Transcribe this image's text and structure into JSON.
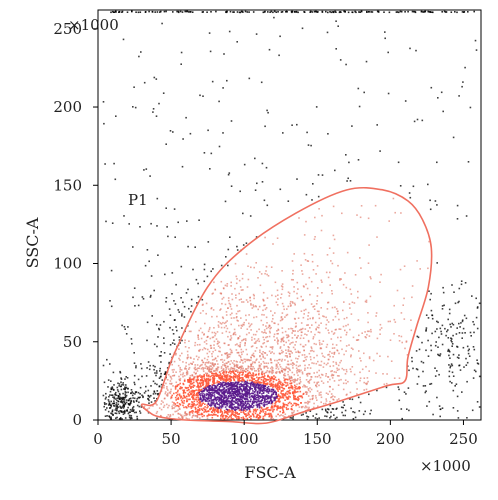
{
  "chart_data": {
    "type": "scatter",
    "title": "",
    "xlabel": "FSC-A",
    "ylabel": "SSC-A",
    "x_multiplier_label": "×1000",
    "y_multiplier_label": "×1000",
    "xlim": [
      0,
      262
    ],
    "ylim": [
      0,
      262
    ],
    "x_ticks": [
      0,
      50,
      100,
      150,
      200,
      250
    ],
    "y_ticks": [
      0,
      50,
      100,
      150,
      200,
      250
    ],
    "grid": false,
    "colors": {
      "background_points": "#000000",
      "gate_points_low": "#e07b6b",
      "gate_points_mid": "#ff5a3c",
      "gate_points_high": "#5a1a8c",
      "gate_outline": "#f07060"
    },
    "gate": {
      "name": "P1",
      "polygon": [
        [
          30,
          10
        ],
        [
          40,
          12
        ],
        [
          52,
          42
        ],
        [
          75,
          85
        ],
        [
          100,
          110
        ],
        [
          135,
          132
        ],
        [
          170,
          147
        ],
        [
          195,
          147
        ],
        [
          212,
          140
        ],
        [
          222,
          128
        ],
        [
          228,
          110
        ],
        [
          226,
          85
        ],
        [
          218,
          60
        ],
        [
          212,
          40
        ],
        [
          210,
          25
        ],
        [
          198,
          22
        ],
        [
          165,
          12
        ],
        [
          140,
          5
        ],
        [
          115,
          -2
        ],
        [
          90,
          -1
        ],
        [
          60,
          0
        ],
        [
          42,
          2
        ],
        [
          35,
          5
        ]
      ]
    },
    "saturation_band_y": 262,
    "clusters": [
      {
        "region": "main population core",
        "center": [
          90,
          18
        ],
        "spread": [
          25,
          10
        ],
        "approx_count": 2200
      },
      {
        "region": "extended gated population",
        "center": [
          115,
          40
        ],
        "spread": [
          40,
          28
        ],
        "approx_count": 1600
      },
      {
        "region": "debris near origin",
        "center": [
          15,
          12
        ],
        "spread": [
          6,
          8
        ],
        "approx_count": 250
      },
      {
        "region": "high FSC events",
        "center": [
          240,
          45
        ],
        "spread": [
          15,
          20
        ],
        "approx_count": 180
      },
      {
        "region": "sparse background",
        "center": [
          130,
          130
        ],
        "spread": [
          130,
          130
        ],
        "approx_count": 650
      }
    ]
  }
}
